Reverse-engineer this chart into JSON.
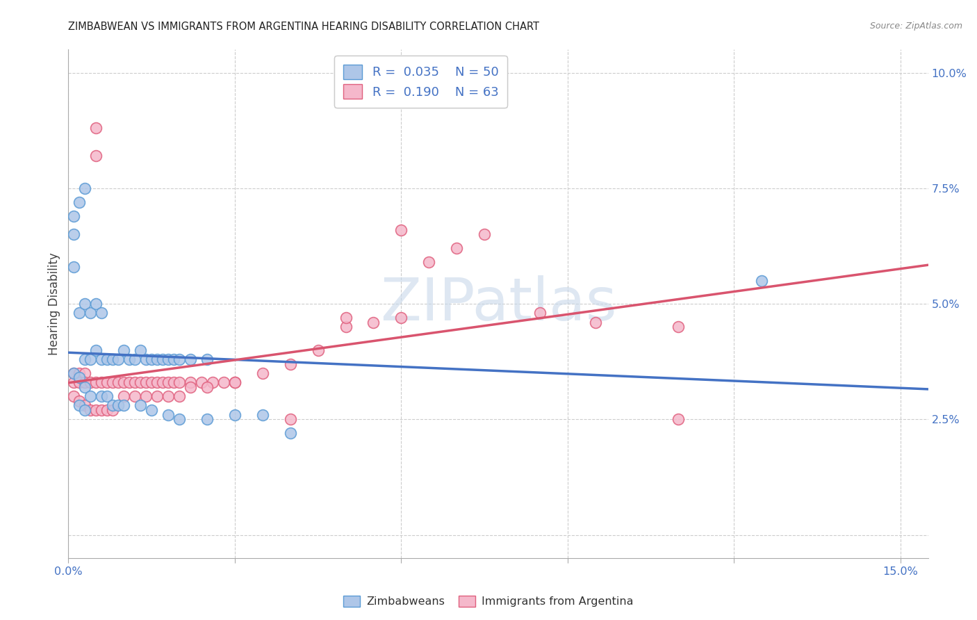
{
  "title": "ZIMBABWEAN VS IMMIGRANTS FROM ARGENTINA HEARING DISABILITY CORRELATION CHART",
  "source": "Source: ZipAtlas.com",
  "xlim": [
    0.0,
    0.155
  ],
  "ylim": [
    -0.005,
    0.105
  ],
  "zimbabwe_color": "#aec6e8",
  "argentina_color": "#f5b8cb",
  "zimbabwe_edge_color": "#5b9bd5",
  "argentina_edge_color": "#e0607e",
  "zimbabwe_line_color": "#4472c4",
  "argentina_line_color": "#d9546e",
  "R_zimbabwe": 0.035,
  "N_zimbabwe": 50,
  "R_argentina": 0.19,
  "N_argentina": 63,
  "watermark_color": "#c8d8ea",
  "grid_color": "#cccccc",
  "tick_color": "#4472c4",
  "zimbabwe_x": [
    0.001,
    0.001,
    0.002,
    0.003,
    0.001,
    0.002,
    0.003,
    0.004,
    0.005,
    0.006,
    0.003,
    0.004,
    0.005,
    0.006,
    0.007,
    0.008,
    0.009,
    0.01,
    0.011,
    0.012,
    0.013,
    0.014,
    0.015,
    0.016,
    0.017,
    0.018,
    0.019,
    0.02,
    0.022,
    0.025,
    0.001,
    0.002,
    0.003,
    0.004,
    0.002,
    0.003,
    0.006,
    0.007,
    0.008,
    0.009,
    0.01,
    0.013,
    0.015,
    0.018,
    0.02,
    0.025,
    0.03,
    0.035,
    0.04,
    0.125
  ],
  "zimbabwe_y": [
    0.065,
    0.069,
    0.072,
    0.075,
    0.058,
    0.048,
    0.05,
    0.048,
    0.05,
    0.048,
    0.038,
    0.038,
    0.04,
    0.038,
    0.038,
    0.038,
    0.038,
    0.04,
    0.038,
    0.038,
    0.04,
    0.038,
    0.038,
    0.038,
    0.038,
    0.038,
    0.038,
    0.038,
    0.038,
    0.038,
    0.035,
    0.034,
    0.032,
    0.03,
    0.028,
    0.027,
    0.03,
    0.03,
    0.028,
    0.028,
    0.028,
    0.028,
    0.027,
    0.026,
    0.025,
    0.025,
    0.026,
    0.026,
    0.022,
    0.055
  ],
  "argentina_x": [
    0.005,
    0.005,
    0.001,
    0.002,
    0.003,
    0.001,
    0.002,
    0.003,
    0.004,
    0.005,
    0.006,
    0.007,
    0.008,
    0.009,
    0.01,
    0.011,
    0.012,
    0.013,
    0.014,
    0.015,
    0.016,
    0.017,
    0.018,
    0.019,
    0.02,
    0.022,
    0.024,
    0.026,
    0.028,
    0.03,
    0.001,
    0.002,
    0.003,
    0.004,
    0.005,
    0.006,
    0.007,
    0.008,
    0.01,
    0.012,
    0.014,
    0.016,
    0.018,
    0.02,
    0.022,
    0.025,
    0.03,
    0.035,
    0.04,
    0.045,
    0.05,
    0.055,
    0.06,
    0.065,
    0.07,
    0.075,
    0.085,
    0.095,
    0.11,
    0.04,
    0.05,
    0.06,
    0.11
  ],
  "argentina_y": [
    0.088,
    0.082,
    0.035,
    0.035,
    0.035,
    0.033,
    0.033,
    0.033,
    0.033,
    0.033,
    0.033,
    0.033,
    0.033,
    0.033,
    0.033,
    0.033,
    0.033,
    0.033,
    0.033,
    0.033,
    0.033,
    0.033,
    0.033,
    0.033,
    0.033,
    0.033,
    0.033,
    0.033,
    0.033,
    0.033,
    0.03,
    0.029,
    0.028,
    0.027,
    0.027,
    0.027,
    0.027,
    0.027,
    0.03,
    0.03,
    0.03,
    0.03,
    0.03,
    0.03,
    0.032,
    0.032,
    0.033,
    0.035,
    0.037,
    0.04,
    0.045,
    0.046,
    0.047,
    0.059,
    0.062,
    0.065,
    0.048,
    0.046,
    0.045,
    0.025,
    0.047,
    0.066,
    0.025
  ]
}
